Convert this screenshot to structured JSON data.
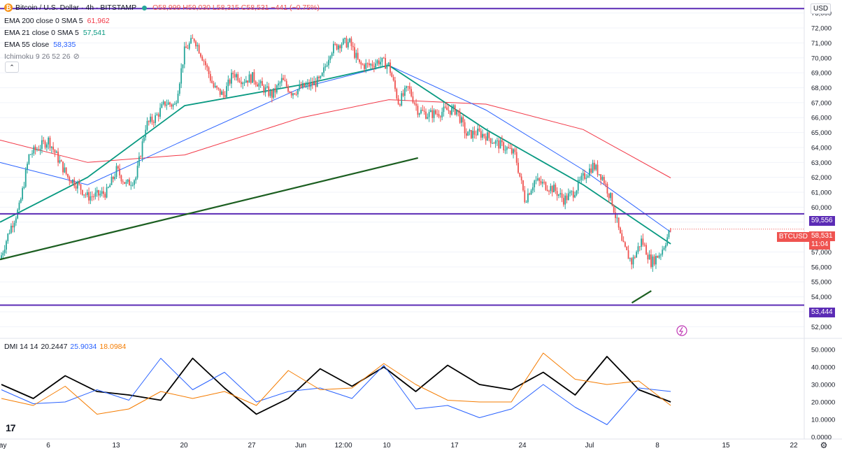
{
  "header": {
    "symbol": "Bitcoin / U.S. Dollar · 4h · BITSTAMP",
    "ohlc": "O58,999 H59,030 L58,315 C58,531 −441 (−0.75%)",
    "ema200_label": "EMA 200 close 0 SMA 5",
    "ema200_value": "61,962",
    "ema21_label": "EMA 21 close 0 SMA 5",
    "ema21_value": "57,541",
    "ema55_label": "EMA 55 close",
    "ema55_value": "58,335",
    "ichimoku_label": "Ichimoku 9 26 52 26",
    "collapse_icon": "chevron-up-icon",
    "visibility_icon": "eye-off-icon"
  },
  "dmi": {
    "label": "DMI 14 14",
    "adx_value": "20.2447",
    "plus_value": "25.9034",
    "minus_value": "18.0984"
  },
  "price_axis": {
    "currency": "USD",
    "ticks": [
      "73,000",
      "72,000",
      "71,000",
      "70,000",
      "69,000",
      "68,000",
      "67,000",
      "66,000",
      "65,000",
      "64,000",
      "63,000",
      "62,000",
      "61,000",
      "60,000",
      "59,000",
      "57,000",
      "56,000",
      "55,000",
      "54,000",
      "53,000",
      "52,000"
    ],
    "badges": {
      "resistance": "59,556",
      "current": "58,531",
      "countdown": "11:04",
      "support": "53,444"
    },
    "symbol_tag": "BTCUSD"
  },
  "dmi_axis": {
    "ticks": [
      "50.0000",
      "40.0000",
      "30.0000",
      "20.0000",
      "10.0000",
      "0.0000"
    ]
  },
  "time_axis": {
    "ticks": [
      "May",
      "6",
      "13",
      "20",
      "27",
      "Jun",
      "12:00",
      "10",
      "17",
      "24",
      "Jul",
      "8",
      "15",
      "22"
    ]
  },
  "colors": {
    "up": "#26a69a",
    "down": "#ef5350",
    "ema200": "#f23645",
    "ema21": "#089981",
    "ema55": "#2962ff",
    "hline": "#5b2bb5",
    "trend": "#1b5e20",
    "adx": "#000000",
    "plus_di": "#2962ff",
    "minus_di": "#f57c00"
  },
  "chart_data": [
    {
      "type": "candlestick",
      "title": "Bitcoin / U.S. Dollar · 4h · BITSTAMP",
      "ylim": [
        51500,
        73500
      ],
      "horizontal_levels": [
        {
          "value": 73300
        },
        {
          "value": 59556
        },
        {
          "value": 53444
        }
      ],
      "trendlines": [
        {
          "from": [
            "May 1",
            56500
          ],
          "to": [
            "Jun 13",
            63300
          ]
        },
        {
          "from": [
            "Jul 5",
            53600
          ],
          "to": [
            "Jul 7",
            54400
          ]
        }
      ],
      "close_path": [
        [
          "May 1",
          56500
        ],
        [
          "May 2",
          58500
        ],
        [
          "May 3",
          60000
        ],
        [
          "May 4",
          63500
        ],
        [
          "May 5",
          64000
        ],
        [
          "May 6",
          64500
        ],
        [
          "May 7",
          63200
        ],
        [
          "May 8",
          62000
        ],
        [
          "May 9",
          61500
        ],
        [
          "May 10",
          60700
        ],
        [
          "May 11",
          60800
        ],
        [
          "May 12",
          61000
        ],
        [
          "May 13",
          62500
        ],
        [
          "May 14",
          61500
        ],
        [
          "May 15",
          62000
        ],
        [
          "May 16",
          65500
        ],
        [
          "May 17",
          66000
        ],
        [
          "May 18",
          67000
        ],
        [
          "May 19",
          66800
        ],
        [
          "May 20",
          70500
        ],
        [
          "May 21",
          71300
        ],
        [
          "May 22",
          69800
        ],
        [
          "May 23",
          68000
        ],
        [
          "May 24",
          67500
        ],
        [
          "May 25",
          69000
        ],
        [
          "May 26",
          68500
        ],
        [
          "May 27",
          68700
        ],
        [
          "May 28",
          68000
        ],
        [
          "May 29",
          67500
        ],
        [
          "May 30",
          68500
        ],
        [
          "May 31",
          67700
        ],
        [
          "Jun 1",
          68000
        ],
        [
          "Jun 2",
          68200
        ],
        [
          "Jun 3",
          68500
        ],
        [
          "Jun 4",
          70500
        ],
        [
          "Jun 5",
          71000
        ],
        [
          "Jun 6",
          71000
        ],
        [
          "Jun 7",
          69500
        ],
        [
          "Jun 8",
          69500
        ],
        [
          "Jun 9",
          69800
        ],
        [
          "Jun 10",
          69500
        ],
        [
          "Jun 11",
          67000
        ],
        [
          "Jun 12",
          68000
        ],
        [
          "Jun 13",
          66500
        ],
        [
          "Jun 14",
          66200
        ],
        [
          "Jun 15",
          66300
        ],
        [
          "Jun 16",
          66500
        ],
        [
          "Jun 17",
          66500
        ],
        [
          "Jun 18",
          64800
        ],
        [
          "Jun 19",
          65000
        ],
        [
          "Jun 20",
          64800
        ],
        [
          "Jun 21",
          64300
        ],
        [
          "Jun 22",
          64000
        ],
        [
          "Jun 23",
          63500
        ],
        [
          "Jun 24",
          60500
        ],
        [
          "Jun 25",
          61800
        ],
        [
          "Jun 26",
          61500
        ],
        [
          "Jun 27",
          61200
        ],
        [
          "Jun 28",
          60500
        ],
        [
          "Jun 29",
          61000
        ],
        [
          "Jun 30",
          62000
        ],
        [
          "Jul 1",
          62800
        ],
        [
          "Jul 2",
          62000
        ],
        [
          "Jul 3",
          60300
        ],
        [
          "Jul 4",
          57500
        ],
        [
          "Jul 5",
          56300
        ],
        [
          "Jul 6",
          57800
        ],
        [
          "Jul 7",
          56300
        ],
        [
          "Jul 8",
          57000
        ],
        [
          "Jul 9",
          58531
        ]
      ],
      "series": [
        {
          "name": "EMA 200",
          "values": [
            [
              "May 1",
              64500
            ],
            [
              "May 10",
              63000
            ],
            [
              "May 20",
              63500
            ],
            [
              "Jun 1",
              66000
            ],
            [
              "Jun 10",
              67200
            ],
            [
              "Jun 20",
              66900
            ],
            [
              "Jun 30",
              65200
            ],
            [
              "Jul 9",
              61962
            ]
          ]
        },
        {
          "name": "EMA 55",
          "values": [
            [
              "May 1",
              63000
            ],
            [
              "May 10",
              61500
            ],
            [
              "May 20",
              64500
            ],
            [
              "Jun 1",
              68000
            ],
            [
              "Jun 10",
              69500
            ],
            [
              "Jun 20",
              66500
            ],
            [
              "Jun 30",
              62500
            ],
            [
              "Jul 9",
              58335
            ]
          ]
        },
        {
          "name": "EMA 21",
          "values": [
            [
              "May 1",
              59000
            ],
            [
              "May 10",
              62000
            ],
            [
              "May 20",
              66800
            ],
            [
              "Jun 1",
              68200
            ],
            [
              "Jun 10",
              69500
            ],
            [
              "Jun 20",
              65200
            ],
            [
              "Jun 30",
              61500
            ],
            [
              "Jul 9",
              57541
            ]
          ]
        }
      ]
    },
    {
      "type": "line",
      "title": "DMI 14 14",
      "ylim": [
        0,
        52
      ],
      "series": [
        {
          "name": "ADX",
          "values": [
            30,
            22,
            35,
            26,
            24,
            21,
            45,
            28,
            13,
            22,
            39,
            29,
            40,
            26,
            41,
            30,
            27,
            37,
            24,
            46,
            27,
            20
          ]
        },
        {
          "name": "+DI",
          "values": [
            27,
            19,
            20,
            27,
            21,
            45,
            27,
            37,
            20,
            26,
            28,
            22,
            41,
            16,
            18,
            11,
            16,
            30,
            17,
            7,
            28,
            26
          ]
        },
        {
          "name": "-DI",
          "values": [
            22,
            18,
            29,
            13,
            16,
            26,
            22,
            26,
            18,
            38,
            27,
            28,
            42,
            30,
            21,
            20,
            20,
            48,
            33,
            30,
            32,
            18
          ]
        }
      ]
    }
  ]
}
